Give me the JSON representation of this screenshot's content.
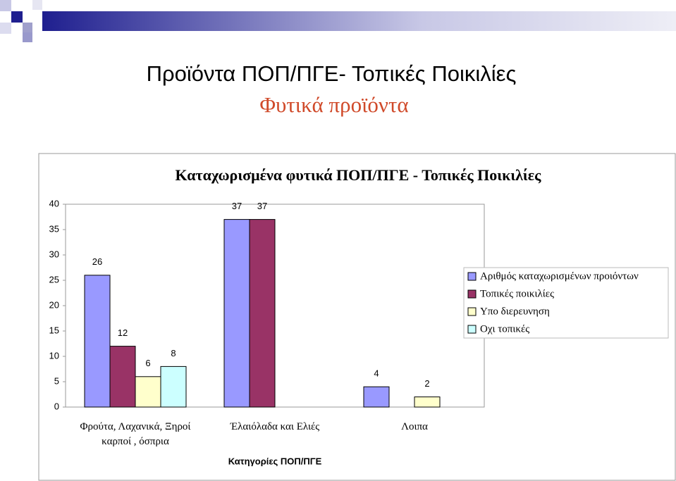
{
  "slide_title": "Προϊόντα ΠΟΠ/ΠΓΕ- Τοπικές Ποικιλίες",
  "slide_subtitle": "Φυτικά προϊόντα",
  "chart_data": {
    "type": "bar",
    "title": "Καταχωρισμένα φυτικά ΠΟΠ/ΠΓΕ - Τοπικές Ποικιλίες",
    "x_label": "Κατηγορίες ΠΟΠ/ΠΓΕ",
    "categories": [
      "Φρούτα, Λαχανικά, Ξηροί καρποί , όσπρια",
      "Έλαιόλαδα και Ελιές",
      "Λοιπα"
    ],
    "series": [
      {
        "name": "Αριθμός καταχωρισμένων προιόντων",
        "color": "#9999ff",
        "values": [
          26,
          37,
          4
        ]
      },
      {
        "name": "Τοπικές ποικιλίες",
        "color": "#993366",
        "values": [
          12,
          37,
          0
        ]
      },
      {
        "name": "Υπο διερευνηση",
        "color": "#ffffcc",
        "values": [
          6,
          0,
          2
        ]
      },
      {
        "name": "Οχι τοπικές",
        "color": "#ccffff",
        "values": [
          8,
          0,
          0
        ]
      }
    ],
    "ylim": [
      0,
      40
    ],
    "yticks": [
      0,
      5,
      10,
      15,
      20,
      25,
      30,
      35,
      40
    ],
    "grid": false,
    "legend": "right"
  }
}
